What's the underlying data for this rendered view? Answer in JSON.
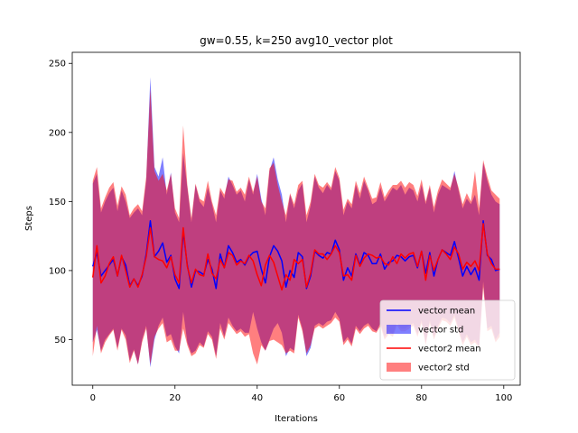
{
  "chart_data": {
    "type": "line",
    "title": "gw=0.55, k=250 avg10_vector plot",
    "xlabel": "Iterations",
    "ylabel": "Steps",
    "xlim": [
      -5,
      104
    ],
    "ylim": [
      17,
      258
    ],
    "xticks": [
      0,
      20,
      40,
      60,
      80,
      100
    ],
    "yticks": [
      50,
      100,
      150,
      200,
      250
    ],
    "grid": false,
    "legend_position": "lower right",
    "x": [
      0,
      1,
      2,
      3,
      4,
      5,
      6,
      7,
      8,
      9,
      10,
      11,
      12,
      13,
      14,
      15,
      16,
      17,
      18,
      19,
      20,
      21,
      22,
      23,
      24,
      25,
      26,
      27,
      28,
      29,
      30,
      31,
      32,
      33,
      34,
      35,
      36,
      37,
      38,
      39,
      40,
      41,
      42,
      43,
      44,
      45,
      46,
      47,
      48,
      49,
      50,
      51,
      52,
      53,
      54,
      55,
      56,
      57,
      58,
      59,
      60,
      61,
      62,
      63,
      64,
      65,
      66,
      67,
      68,
      69,
      70,
      71,
      72,
      73,
      74,
      75,
      76,
      77,
      78,
      79,
      80,
      81,
      82,
      83,
      84,
      85,
      86,
      87,
      88,
      89,
      90,
      91,
      92,
      93,
      94,
      95,
      96,
      97,
      98,
      99
    ],
    "series": [
      {
        "name": "vector mean",
        "kind": "line",
        "color": "#0000ff",
        "values": [
          103,
          113,
          96,
          100,
          104,
          108,
          96,
          110,
          104,
          89,
          94,
          89,
          96,
          112,
          136,
          110,
          114,
          120,
          106,
          111,
          94,
          87,
          128,
          104,
          88,
          100,
          99,
          97,
          108,
          101,
          87,
          112,
          102,
          118,
          113,
          106,
          108,
          104,
          110,
          113,
          114,
          101,
          91,
          110,
          118,
          114,
          107,
          88,
          100,
          95,
          113,
          110,
          87,
          96,
          114,
          111,
          109,
          113,
          112,
          122,
          115,
          93,
          102,
          96,
          112,
          104,
          113,
          111,
          105,
          105,
          112,
          101,
          106,
          107,
          111,
          110,
          107,
          110,
          111,
          102,
          114,
          98,
          113,
          96,
          108,
          115,
          113,
          111,
          121,
          109,
          96,
          103,
          97,
          102,
          93,
          136,
          111,
          108,
          100,
          101
        ]
      },
      {
        "name": "vector std",
        "kind": "band",
        "color": "#0000ff",
        "opacity": 0.5,
        "upper": [
          163,
          170,
          142,
          150,
          156,
          160,
          143,
          158,
          150,
          138,
          142,
          145,
          140,
          165,
          240,
          175,
          168,
          182,
          155,
          171,
          142,
          135,
          185,
          160,
          135,
          162,
          150,
          146,
          160,
          148,
          135,
          158,
          152,
          168,
          162,
          155,
          158,
          150,
          166,
          155,
          170,
          152,
          140,
          172,
          182,
          166,
          155,
          135,
          155,
          145,
          158,
          163,
          135,
          147,
          168,
          160,
          156,
          162,
          158,
          172,
          165,
          140,
          150,
          145,
          162,
          152,
          165,
          158,
          148,
          150,
          160,
          150,
          155,
          160,
          158,
          162,
          155,
          160,
          158,
          150,
          162,
          148,
          160,
          142,
          155,
          162,
          160,
          158,
          172,
          158,
          145,
          152,
          148,
          155,
          140,
          178,
          165,
          155,
          150,
          148
        ],
        "lower": [
          48,
          57,
          42,
          50,
          54,
          58,
          44,
          58,
          53,
          35,
          43,
          32,
          50,
          60,
          30,
          50,
          60,
          66,
          52,
          54,
          45,
          40,
          70,
          48,
          40,
          42,
          48,
          45,
          56,
          52,
          38,
          62,
          52,
          66,
          60,
          56,
          58,
          55,
          55,
          70,
          58,
          48,
          42,
          50,
          58,
          62,
          55,
          38,
          44,
          42,
          68,
          58,
          38,
          44,
          60,
          62,
          60,
          63,
          64,
          70,
          65,
          48,
          52,
          47,
          60,
          56,
          60,
          62,
          58,
          56,
          62,
          52,
          56,
          54,
          62,
          58,
          58,
          60,
          62,
          54,
          64,
          48,
          64,
          52,
          60,
          66,
          65,
          62,
          68,
          58,
          48,
          54,
          48,
          50,
          45,
          92,
          58,
          60,
          50,
          55
        ]
      },
      {
        "name": "vector2 mean",
        "kind": "line",
        "color": "#ff0000",
        "values": [
          95,
          118,
          91,
          96,
          105,
          110,
          96,
          111,
          100,
          88,
          94,
          88,
          97,
          110,
          131,
          110,
          108,
          107,
          102,
          110,
          97,
          91,
          131,
          103,
          91,
          101,
          97,
          96,
          112,
          98,
          94,
          108,
          102,
          113,
          111,
          104,
          107,
          105,
          111,
          107,
          97,
          89,
          104,
          111,
          106,
          96,
          86,
          97,
          93,
          108,
          105,
          108,
          88,
          98,
          115,
          112,
          112,
          108,
          112,
          118,
          113,
          96,
          97,
          93,
          111,
          103,
          109,
          112,
          111,
          109,
          110,
          105,
          104,
          110,
          105,
          112,
          109,
          112,
          113,
          103,
          114,
          93,
          111,
          100,
          108,
          115,
          112,
          108,
          117,
          112,
          101,
          106,
          103,
          107,
          100,
          134,
          112,
          105,
          101,
          101
        ]
      },
      {
        "name": "vector2 std",
        "kind": "band",
        "color": "#ff0000",
        "opacity": 0.5,
        "upper": [
          165,
          175,
          145,
          153,
          160,
          164,
          147,
          161,
          155,
          140,
          145,
          148,
          143,
          168,
          232,
          172,
          165,
          170,
          158,
          170,
          145,
          138,
          205,
          162,
          138,
          163,
          152,
          150,
          165,
          150,
          140,
          160,
          155,
          166,
          165,
          157,
          160,
          155,
          168,
          157,
          168,
          150,
          145,
          174,
          178,
          162,
          150,
          140,
          156,
          148,
          162,
          165,
          140,
          150,
          170,
          162,
          160,
          164,
          160,
          175,
          167,
          144,
          152,
          148,
          165,
          156,
          168,
          160,
          152,
          153,
          164,
          153,
          158,
          162,
          162,
          165,
          160,
          164,
          162,
          154,
          166,
          150,
          162,
          146,
          158,
          166,
          163,
          160,
          170,
          160,
          148,
          156,
          150,
          172,
          145,
          180,
          168,
          158,
          155,
          152
        ],
        "lower": [
          38,
          60,
          40,
          48,
          53,
          57,
          42,
          57,
          50,
          33,
          42,
          32,
          48,
          58,
          32,
          52,
          58,
          62,
          48,
          50,
          42,
          42,
          58,
          46,
          38,
          40,
          46,
          44,
          54,
          50,
          36,
          58,
          50,
          62,
          58,
          54,
          56,
          52,
          54,
          40,
          32,
          46,
          42,
          49,
          50,
          48,
          46,
          40,
          42,
          40,
          66,
          56,
          40,
          46,
          58,
          60,
          58,
          60,
          62,
          66,
          63,
          46,
          50,
          45,
          58,
          54,
          58,
          60,
          56,
          55,
          60,
          50,
          54,
          52,
          60,
          56,
          56,
          58,
          60,
          52,
          62,
          46,
          62,
          50,
          58,
          64,
          63,
          60,
          66,
          56,
          46,
          52,
          46,
          48,
          44,
          88,
          56,
          58,
          48,
          52
        ]
      }
    ]
  }
}
